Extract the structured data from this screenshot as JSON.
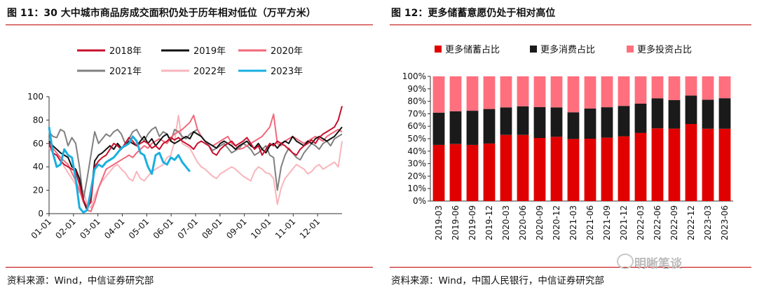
{
  "chart_data": [
    {
      "type": "line",
      "figure_title": "图 11：30 大中城市商品房成交面积仍处于历年相对低位（万平方米）",
      "source": "资料来源：Wind，中信证券研究部",
      "x_ticks": [
        "01-01",
        "02-01",
        "03-01",
        "04-01",
        "05-01",
        "06-01",
        "07-01",
        "08-01",
        "09-01",
        "10-01",
        "11-01",
        "12-01"
      ],
      "y_ticks": [
        "0",
        "20",
        "40",
        "60",
        "80",
        "100"
      ],
      "ylim": [
        0,
        100
      ],
      "legend_placement": "top",
      "series": [
        {
          "name": "2018年",
          "color": "#c8102e",
          "values": [
            60,
            52,
            50,
            45,
            42,
            40,
            38,
            36,
            25,
            12,
            5,
            10,
            40,
            45,
            48,
            50,
            55,
            60,
            58,
            55,
            60,
            65,
            62,
            58,
            60,
            62,
            60,
            56,
            58,
            55,
            60,
            62,
            65,
            63,
            65,
            62,
            60,
            58,
            55,
            60,
            62,
            60,
            58,
            52,
            50,
            55,
            58,
            60,
            62,
            58,
            60,
            62,
            65,
            60,
            55,
            58,
            50,
            55,
            60,
            58,
            62,
            60,
            58,
            55,
            52,
            50,
            55,
            58,
            60,
            63,
            60,
            65,
            68,
            70,
            72,
            74,
            80,
            92
          ]
        },
        {
          "name": "2019年",
          "color": "#111111",
          "values": [
            62,
            58,
            55,
            52,
            50,
            48,
            40,
            38,
            30,
            12,
            3,
            15,
            45,
            50,
            52,
            55,
            58,
            55,
            60,
            56,
            58,
            62,
            60,
            58,
            62,
            66,
            60,
            64,
            58,
            62,
            66,
            68,
            62,
            60,
            62,
            64,
            66,
            64,
            70,
            68,
            66,
            62,
            60,
            58,
            56,
            60,
            62,
            60,
            58,
            55,
            58,
            60,
            62,
            58,
            56,
            60,
            55,
            52,
            58,
            60,
            56,
            60,
            62,
            60,
            66,
            62,
            60,
            58,
            62,
            60,
            64,
            66,
            64,
            62,
            64,
            66,
            70,
            74
          ]
        },
        {
          "name": "2020年",
          "color": "#f2677a",
          "values": [
            62,
            56,
            52,
            48,
            45,
            42,
            35,
            28,
            20,
            10,
            3,
            2,
            10,
            22,
            30,
            38,
            40,
            42,
            44,
            46,
            48,
            50,
            48,
            52,
            55,
            58,
            56,
            60,
            62,
            64,
            62,
            60,
            65,
            68,
            70,
            72,
            75,
            78,
            84,
            72,
            66,
            62,
            60,
            58,
            60,
            62,
            64,
            66,
            60,
            58,
            55,
            56,
            58,
            60,
            62,
            64,
            66,
            70,
            74,
            85,
            60,
            58,
            62,
            64,
            66,
            64,
            62,
            60,
            62,
            64,
            66,
            64,
            62,
            66,
            68,
            70,
            72,
            70
          ]
        },
        {
          "name": "2021年",
          "color": "#808080",
          "values": [
            70,
            66,
            65,
            72,
            70,
            58,
            65,
            60,
            40,
            12,
            30,
            50,
            70,
            60,
            64,
            68,
            66,
            70,
            72,
            68,
            60,
            64,
            70,
            72,
            66,
            62,
            68,
            72,
            74,
            66,
            70,
            68,
            62,
            72,
            70,
            66,
            64,
            68,
            70,
            72,
            66,
            62,
            58,
            54,
            56,
            58,
            60,
            56,
            52,
            54,
            56,
            60,
            58,
            55,
            50,
            52,
            55,
            58,
            50,
            48,
            20,
            40,
            50,
            56,
            52,
            48,
            46,
            52,
            56,
            60,
            58,
            55,
            60,
            62,
            58,
            64,
            66,
            68
          ]
        },
        {
          "name": "2022年",
          "color": "#f8b5bb",
          "values": [
            56,
            52,
            50,
            48,
            40,
            35,
            30,
            25,
            18,
            20,
            8,
            5,
            15,
            22,
            28,
            32,
            36,
            40,
            42,
            38,
            35,
            30,
            28,
            36,
            30,
            28,
            32,
            36,
            38,
            40,
            42,
            48,
            50,
            62,
            84,
            60,
            58,
            56,
            50,
            44,
            40,
            38,
            35,
            32,
            30,
            34,
            36,
            38,
            40,
            38,
            35,
            32,
            30,
            28,
            36,
            40,
            38,
            35,
            34,
            30,
            8,
            22,
            30,
            34,
            38,
            42,
            40,
            38,
            34,
            36,
            40,
            42,
            38,
            40,
            42,
            44,
            40,
            62
          ]
        },
        {
          "name": "2023年",
          "color": "#1aafe0",
          "values": [
            74,
            52,
            40,
            42,
            55,
            50,
            48,
            30,
            5,
            1,
            3,
            20,
            38,
            42,
            40,
            44,
            46,
            48,
            52,
            56,
            58,
            60,
            66,
            62,
            52,
            50,
            40,
            34,
            50,
            52,
            44,
            42,
            48,
            46,
            50,
            44,
            40,
            36
          ]
        }
      ]
    },
    {
      "type": "bar",
      "stacked": true,
      "figure_title": "图 12：更多储蓄意愿仍处于相对高位",
      "source": "资料来源：Wind，中国人民银行，中信证券研究部",
      "categories": [
        "2019-03",
        "2019-06",
        "2019-09",
        "2019-12",
        "2020-03",
        "2020-06",
        "2020-09",
        "2020-12",
        "2021-03",
        "2021-06",
        "2021-09",
        "2021-12",
        "2022-03",
        "2022-06",
        "2022-09",
        "2022-12",
        "2023-03",
        "2023-06"
      ],
      "y_ticks": [
        "0%",
        "10%",
        "20%",
        "30%",
        "40%",
        "50%",
        "60%",
        "70%",
        "80%",
        "90%",
        "100%"
      ],
      "ylim": [
        0,
        100
      ],
      "legend_placement": "top",
      "series": [
        {
          "name": "更多储蓄占比",
          "color": "#e00000",
          "values": [
            45.0,
            45.7,
            45.0,
            46.1,
            53.0,
            53.0,
            50.6,
            51.5,
            49.8,
            50.0,
            50.8,
            51.9,
            54.7,
            58.3,
            58.1,
            61.8,
            58.0,
            58.0
          ]
        },
        {
          "name": "更多消费占比",
          "color": "#1a1a1a",
          "values": [
            25.9,
            26.3,
            27.4,
            27.7,
            22.1,
            23.0,
            24.7,
            23.6,
            21.4,
            24.2,
            24.4,
            24.4,
            23.4,
            24.1,
            22.8,
            22.8,
            23.3,
            24.5
          ]
        },
        {
          "name": "更多投资占比",
          "color": "#ff6f7d",
          "values": [
            29.1,
            28.0,
            27.6,
            26.2,
            24.9,
            24.0,
            24.7,
            24.9,
            28.8,
            25.8,
            24.8,
            23.7,
            21.9,
            17.6,
            19.1,
            15.4,
            18.7,
            17.5
          ]
        }
      ]
    }
  ],
  "watermark": "明晰笔谈"
}
